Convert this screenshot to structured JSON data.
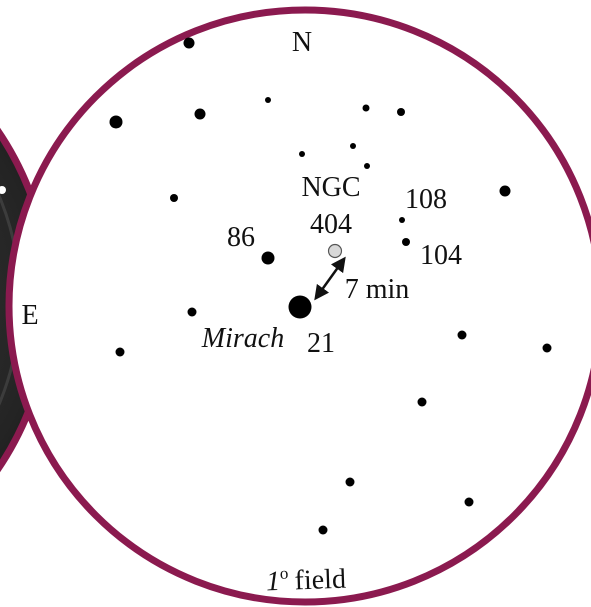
{
  "labels": {
    "north": "N",
    "east": "E",
    "ngc_line1": "NGC",
    "ngc_line2": "404",
    "star_86": "86",
    "star_108": "108",
    "star_104": "104",
    "separation": "7 min",
    "mirach_name": "Mirach",
    "mirach_number": "21",
    "field_degree": "1",
    "field_degree_sup": "o",
    "field_word": "field"
  },
  "colors": {
    "ring": "#8b1a4f",
    "finder_body": "#2b2b2b",
    "star": "#000000",
    "galaxy": "#d8d8d8"
  }
}
